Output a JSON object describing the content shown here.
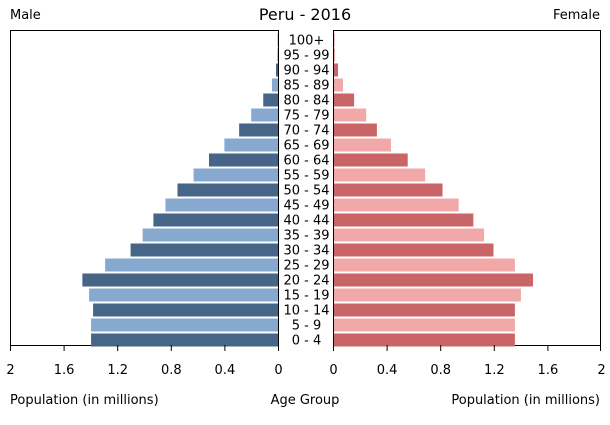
{
  "chart_data": {
    "type": "bar",
    "title": "Peru - 2016",
    "left_label": "Male",
    "right_label": "Female",
    "xlabel_left": "Population (in millions)",
    "xlabel_center": "Age Group",
    "xlabel_right": "Population (in millions)",
    "xlim": [
      0,
      2
    ],
    "left_ticks": [
      "2",
      "1.6",
      "1.2",
      "0.8",
      "0.4",
      "0"
    ],
    "right_ticks": [
      "0",
      "0.4",
      "0.8",
      "1.2",
      "1.6",
      "2"
    ],
    "tick_values": [
      0,
      0.4,
      0.8,
      1.2,
      1.6,
      2
    ],
    "categories": [
      "0 - 4",
      "5 - 9",
      "10 - 14",
      "15 - 19",
      "20 - 24",
      "25 - 29",
      "30 - 34",
      "35 - 39",
      "40 - 44",
      "45 - 49",
      "50 - 54",
      "55 - 59",
      "60 - 64",
      "65 - 69",
      "70 - 74",
      "75 - 79",
      "80 - 84",
      "85 - 89",
      "90 - 94",
      "95 - 99",
      "100+"
    ],
    "series": [
      {
        "name": "Male",
        "values": [
          1.395,
          1.395,
          1.38,
          1.41,
          1.46,
          1.29,
          1.1,
          1.01,
          0.93,
          0.84,
          0.75,
          0.63,
          0.515,
          0.4,
          0.29,
          0.2,
          0.11,
          0.045,
          0.015,
          0.005,
          0.002
        ],
        "colors": [
          "#476587",
          "#87a9cf"
        ]
      },
      {
        "name": "Female",
        "values": [
          1.35,
          1.35,
          1.35,
          1.395,
          1.485,
          1.35,
          1.19,
          1.12,
          1.04,
          0.93,
          0.81,
          0.68,
          0.55,
          0.425,
          0.32,
          0.24,
          0.15,
          0.067,
          0.03,
          0.008,
          0.003
        ],
        "colors": [
          "#c96567",
          "#f0a8a8"
        ]
      }
    ]
  }
}
